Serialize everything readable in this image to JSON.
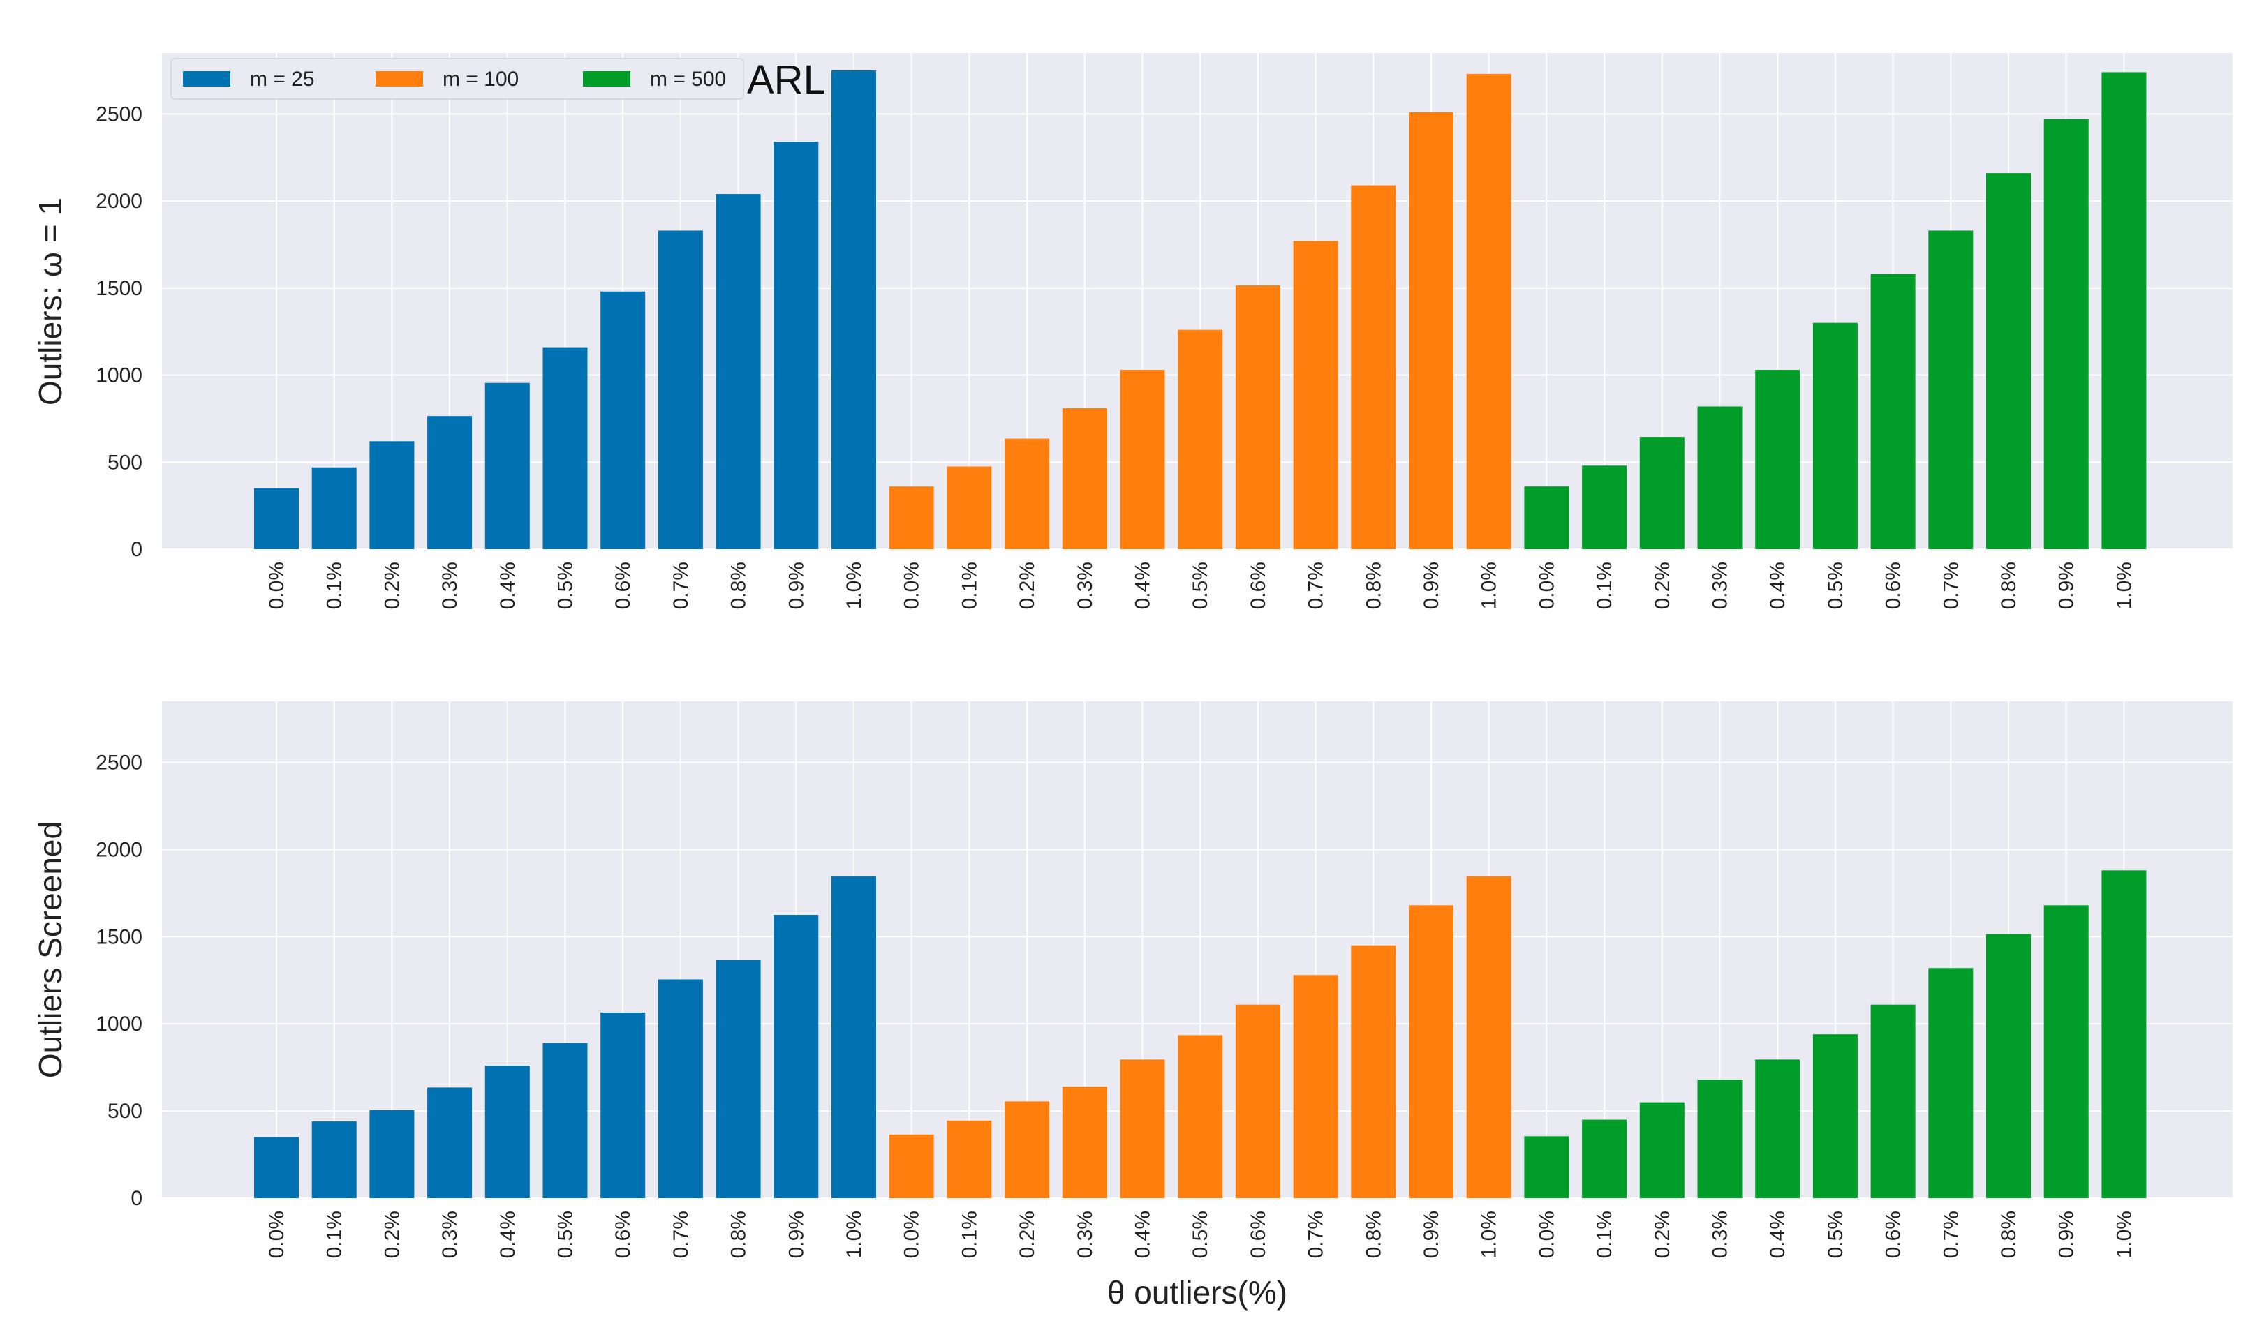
{
  "chart_data": [
    {
      "type": "bar",
      "title": "ARL",
      "ylabel": "Outliers:  ω  =  1",
      "xlabel": "",
      "ylim": [
        0,
        2850
      ],
      "yticks": [
        0,
        500,
        1000,
        1500,
        2000,
        2500
      ],
      "grid": true,
      "legend_position": "top-left",
      "categories": [
        "0.0%",
        "0.1%",
        "0.2%",
        "0.3%",
        "0.4%",
        "0.5%",
        "0.6%",
        "0.7%",
        "0.8%",
        "0.9%",
        "1.0%"
      ],
      "series": [
        {
          "name": "m = 25",
          "color": "#0072b2",
          "values": [
            350,
            470,
            620,
            765,
            955,
            1160,
            1480,
            1830,
            2040,
            2340,
            2750
          ]
        },
        {
          "name": "m = 100",
          "color": "#ff7f0e",
          "values": [
            360,
            475,
            635,
            810,
            1030,
            1260,
            1515,
            1770,
            2090,
            2510,
            2730
          ]
        },
        {
          "name": "m = 500",
          "color": "#009e28",
          "values": [
            360,
            480,
            645,
            820,
            1030,
            1300,
            1580,
            1830,
            2160,
            2470,
            2740
          ]
        }
      ]
    },
    {
      "type": "bar",
      "title": "",
      "ylabel": "Outliers Screened",
      "xlabel": "θ outliers(%)",
      "ylim": [
        0,
        2850
      ],
      "yticks": [
        0,
        500,
        1000,
        1500,
        2000,
        2500
      ],
      "grid": true,
      "categories": [
        "0.0%",
        "0.1%",
        "0.2%",
        "0.3%",
        "0.4%",
        "0.5%",
        "0.6%",
        "0.7%",
        "0.8%",
        "0.9%",
        "1.0%"
      ],
      "series": [
        {
          "name": "m = 25",
          "color": "#0072b2",
          "values": [
            350,
            440,
            505,
            635,
            760,
            890,
            1065,
            1255,
            1365,
            1625,
            1845
          ]
        },
        {
          "name": "m = 100",
          "color": "#ff7f0e",
          "values": [
            365,
            445,
            555,
            640,
            795,
            935,
            1110,
            1280,
            1450,
            1680,
            1845
          ]
        },
        {
          "name": "m = 500",
          "color": "#009e28",
          "values": [
            355,
            450,
            550,
            680,
            795,
            940,
            1110,
            1320,
            1515,
            1680,
            1880
          ]
        }
      ]
    }
  ]
}
